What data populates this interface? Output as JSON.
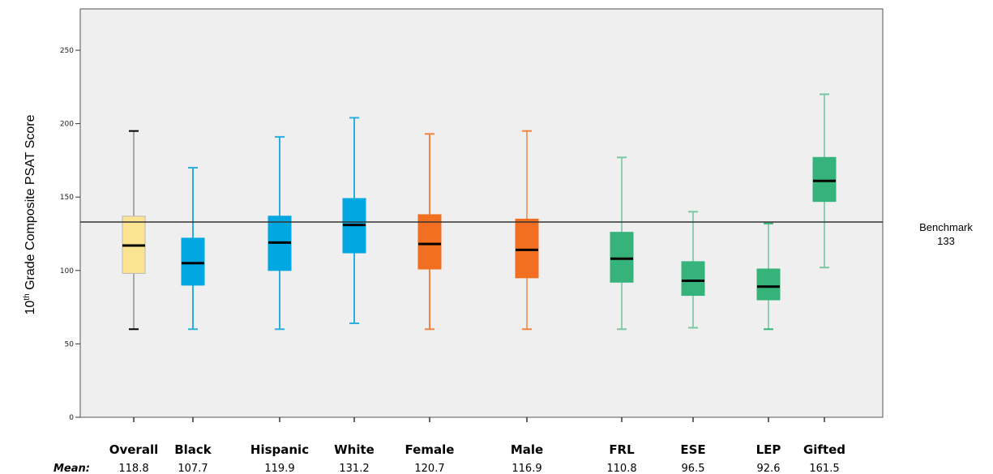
{
  "chart_data": {
    "type": "boxplot",
    "ylabel_main": "10",
    "ylabel_sup": "th",
    "ylabel_rest": " Grade Composite  PSAT Score",
    "ylim": [
      0,
      265
    ],
    "yticks": [
      0,
      50,
      100,
      150,
      200,
      250
    ],
    "grid": false,
    "mean_label": "Mean:",
    "benchmark": {
      "label": "Benchmark",
      "value": 133,
      "value_label": "133"
    },
    "groups": [
      {
        "name": "Overall",
        "mean": "118.8",
        "min": 60,
        "q1": 98,
        "median": 117,
        "q3": 137,
        "max": 195,
        "fill": "#fae391",
        "stroke": "#b9b9b9",
        "whisker": "#a8a8a8",
        "cap": "#000000"
      },
      {
        "name": "Black",
        "mean": "107.7",
        "min": 60,
        "q1": 90,
        "median": 105,
        "q3": 122,
        "max": 170,
        "fill": "#00a7e1",
        "stroke": "#00a7e1",
        "whisker": "#29aee0",
        "cap": "#29aee0"
      },
      {
        "name": "Hispanic",
        "mean": "119.9",
        "min": 60,
        "q1": 100,
        "median": 119,
        "q3": 137,
        "max": 191,
        "fill": "#00a7e1",
        "stroke": "#00a7e1",
        "whisker": "#29aee0",
        "cap": "#29aee0"
      },
      {
        "name": "White",
        "mean": "131.2",
        "min": 64,
        "q1": 112,
        "median": 131,
        "q3": 149,
        "max": 204,
        "fill": "#00a7e1",
        "stroke": "#00a7e1",
        "whisker": "#29aee0",
        "cap": "#29aee0"
      },
      {
        "name": "Female",
        "mean": "120.7",
        "min": 60,
        "q1": 101,
        "median": 118,
        "q3": 138,
        "max": 193,
        "fill": "#f26f21",
        "stroke": "#f26f21",
        "whisker": "#f0843f",
        "cap": "#f0843f"
      },
      {
        "name": "Male",
        "mean": "116.9",
        "min": 60,
        "q1": 95,
        "median": 114,
        "q3": 135,
        "max": 195,
        "fill": "#f26f21",
        "stroke": "#f26f21",
        "whisker": "#f0a070",
        "cap": "#f0843f"
      },
      {
        "name": "FRL",
        "mean": "110.8",
        "min": 60,
        "q1": 92,
        "median": 108,
        "q3": 126,
        "max": 177,
        "fill": "#35b37b",
        "stroke": "#35b37b",
        "whisker": "#8fcfb0",
        "cap": "#7cc7a3"
      },
      {
        "name": "ESE",
        "mean": "96.5",
        "min": 61,
        "q1": 83,
        "median": 93,
        "q3": 106,
        "max": 140,
        "fill": "#35b37b",
        "stroke": "#35b37b",
        "whisker": "#8fcfb0",
        "cap": "#7cc7a3"
      },
      {
        "name": "LEP",
        "mean": "92.6",
        "min": 60,
        "q1": 80,
        "median": 89,
        "q3": 101,
        "max": 132,
        "fill": "#35b37b",
        "stroke": "#35b37b",
        "whisker": "#8fcfb0",
        "cap": "#35b37b"
      },
      {
        "name": "Gifted",
        "mean": "161.5",
        "min": 102,
        "q1": 147,
        "median": 161,
        "q3": 177,
        "max": 220,
        "fill": "#35b37b",
        "stroke": "#35b37b",
        "whisker": "#8fcfb0",
        "cap": "#7cc7a3"
      }
    ]
  }
}
